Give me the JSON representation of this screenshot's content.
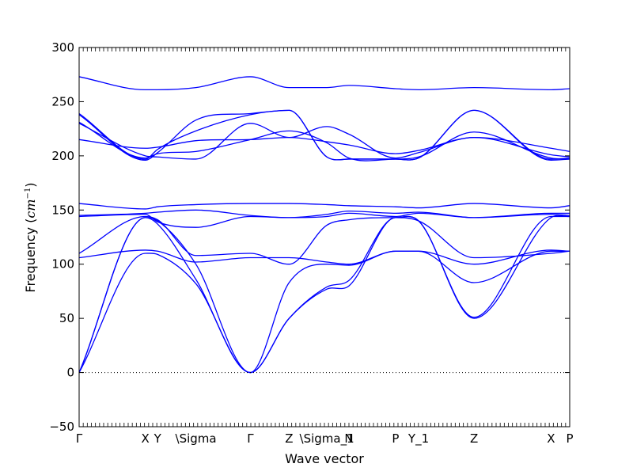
{
  "chart_data": {
    "type": "line",
    "xlabel": "Wave vector",
    "ylabel_prefix": "Frequency (",
    "ylabel_unit": "cm",
    "ylabel_exp": "−1",
    "ylabel_suffix": ")",
    "ylim": [
      -50,
      300
    ],
    "y_ticks": [
      -50,
      0,
      50,
      100,
      150,
      200,
      250,
      300
    ],
    "y_tick_labels": [
      "−50",
      "0",
      "50",
      "100",
      "150",
      "200",
      "250",
      "300"
    ],
    "x_range": [
      0,
      1
    ],
    "q_points": [
      {
        "label": "Γ",
        "x": 0.0
      },
      {
        "label": "X",
        "x": 0.135
      },
      {
        "label": "Y",
        "x": 0.16
      },
      {
        "label": "\\Sigma",
        "x": 0.238
      },
      {
        "label": "Γ",
        "x": 0.349
      },
      {
        "label": "Z",
        "x": 0.428
      },
      {
        "label": "\\Sigma_1",
        "x": 0.505
      },
      {
        "label": "N",
        "x": 0.55
      },
      {
        "label": "P",
        "x": 0.645
      },
      {
        "label": "Y_1",
        "x": 0.692
      },
      {
        "label": "Z",
        "x": 0.805
      },
      {
        "label": "X",
        "x": 0.962
      },
      {
        "label": "P",
        "x": 1.0
      }
    ],
    "zero_line": {
      "y": 0,
      "style": "dotted"
    },
    "line_color": "#0000ff",
    "grid": false,
    "series": [
      {
        "x": [
          0,
          0.135,
          0.16,
          0.238,
          0.349,
          0.428,
          0.505,
          0.55,
          0.645,
          0.692,
          0.805,
          0.962,
          1.0
        ],
        "y": [
          0,
          143,
          140,
          100,
          0,
          50,
          77,
          80,
          143,
          140,
          50,
          143,
          144
        ]
      },
      {
        "x": [
          0,
          0.135,
          0.16,
          0.238,
          0.349,
          0.428,
          0.505,
          0.55,
          0.645,
          0.692,
          0.805,
          0.962,
          1.0
        ],
        "y": [
          0,
          143,
          137,
          86,
          0,
          50,
          79,
          85,
          143,
          140,
          51,
          144,
          144
        ]
      },
      {
        "x": [
          0,
          0.135,
          0.16,
          0.238,
          0.349,
          0.428,
          0.505,
          0.55,
          0.645,
          0.692,
          0.805,
          0.962,
          1.0
        ],
        "y": [
          0,
          110,
          109,
          82,
          0,
          83,
          100,
          99,
          112,
          112,
          83,
          112,
          112
        ]
      },
      {
        "x": [
          0,
          0.135,
          0.16,
          0.238,
          0.349,
          0.428,
          0.505,
          0.55,
          0.645,
          0.692,
          0.805,
          0.962,
          1.0
        ],
        "y": [
          106,
          113,
          112,
          102,
          106,
          106,
          102,
          100,
          112,
          112,
          100,
          113,
          112
        ]
      },
      {
        "x": [
          0,
          0.135,
          0.16,
          0.238,
          0.349,
          0.428,
          0.505,
          0.55,
          0.645,
          0.692,
          0.805,
          0.962,
          1.0
        ],
        "y": [
          110,
          144,
          141,
          108,
          110,
          100,
          136,
          141,
          143,
          140,
          106,
          110,
          112
        ]
      },
      {
        "x": [
          0,
          0.135,
          0.16,
          0.238,
          0.349,
          0.428,
          0.505,
          0.55,
          0.645,
          0.692,
          0.805,
          0.962,
          1.0
        ],
        "y": [
          144,
          146,
          139,
          134,
          144,
          143,
          144,
          147,
          144,
          147,
          143,
          146,
          145
        ]
      },
      {
        "x": [
          0,
          0.135,
          0.16,
          0.238,
          0.349,
          0.428,
          0.505,
          0.55,
          0.645,
          0.692,
          0.805,
          0.962,
          1.0
        ],
        "y": [
          145,
          147,
          148,
          150,
          145,
          143,
          146,
          149,
          147,
          148,
          143,
          147,
          147
        ]
      },
      {
        "x": [
          0,
          0.135,
          0.16,
          0.238,
          0.349,
          0.428,
          0.505,
          0.55,
          0.645,
          0.692,
          0.805,
          0.962,
          1.0
        ],
        "y": [
          156,
          151,
          153,
          155,
          156,
          156,
          155,
          154,
          153,
          152,
          156,
          152,
          154
        ]
      },
      {
        "x": [
          0,
          0.135,
          0.16,
          0.238,
          0.349,
          0.428,
          0.505,
          0.55,
          0.645,
          0.692,
          0.805,
          0.962,
          1.0
        ],
        "y": [
          215,
          207,
          208,
          214,
          215,
          217,
          213,
          210,
          202,
          205,
          217,
          207,
          204
        ]
      },
      {
        "x": [
          0,
          0.135,
          0.16,
          0.238,
          0.349,
          0.428,
          0.505,
          0.55,
          0.645,
          0.692,
          0.805,
          0.962,
          1.0
        ],
        "y": [
          230,
          200,
          199,
          197,
          230,
          217,
          227,
          220,
          198,
          203,
          217,
          201,
          199
        ]
      },
      {
        "x": [
          0,
          0.135,
          0.16,
          0.238,
          0.349,
          0.428,
          0.505,
          0.55,
          0.645,
          0.692,
          0.805,
          0.962,
          1.0
        ],
        "y": [
          231,
          198,
          202,
          204,
          215,
          223,
          212,
          198,
          197,
          199,
          222,
          198,
          197
        ]
      },
      {
        "x": [
          0,
          0.135,
          0.16,
          0.238,
          0.349,
          0.428,
          0.505,
          0.55,
          0.645,
          0.692,
          0.805,
          0.962,
          1.0
        ],
        "y": [
          239,
          197,
          206,
          223,
          238,
          242,
          199,
          197,
          197,
          198,
          242,
          197,
          198
        ]
      },
      {
        "x": [
          0,
          0.135,
          0.16,
          0.238,
          0.349,
          0.428,
          0.505,
          0.55,
          0.645,
          0.692,
          0.805,
          0.962,
          1.0
        ],
        "y": [
          238,
          196,
          203,
          233,
          239,
          242,
          199,
          197,
          197,
          198,
          242,
          196,
          197
        ]
      },
      {
        "x": [
          0,
          0.135,
          0.16,
          0.238,
          0.349,
          0.428,
          0.505,
          0.55,
          0.645,
          0.692,
          0.805,
          0.962,
          1.0
        ],
        "y": [
          273,
          261,
          261,
          263,
          273,
          263,
          263,
          265,
          262,
          261,
          263,
          261,
          262
        ]
      }
    ]
  }
}
